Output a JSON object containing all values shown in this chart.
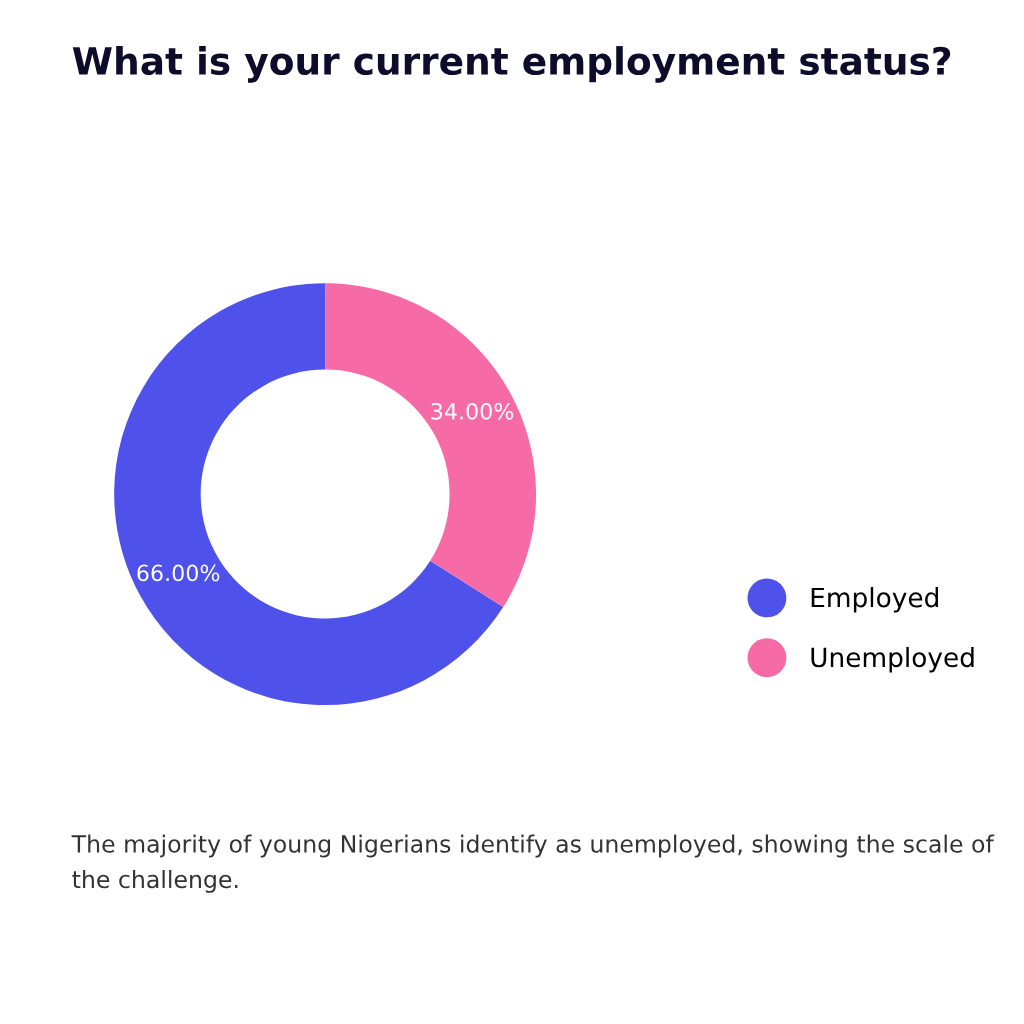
{
  "chart_data": {
    "type": "donut",
    "title": "What is your current employment status?",
    "categories": [
      "Employed",
      "Unemployed"
    ],
    "values": [
      66,
      34
    ],
    "colors": [
      "#4f52ea",
      "#f66aa6"
    ],
    "value_labels": [
      "66.00%",
      "34.00%"
    ],
    "legend": "right",
    "annotations": [
      "The majority of young Nigerians identify as unemployed, showing the scale of the challenge."
    ]
  }
}
